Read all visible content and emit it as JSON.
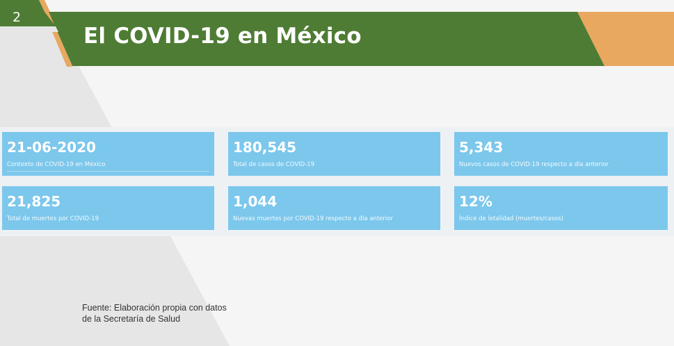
{
  "slide": {
    "number": "2",
    "title": "El COVID-19 en México"
  },
  "colors": {
    "green": "#4e7c34",
    "orange": "#e8a860",
    "card": "#7cc7ec"
  },
  "stats": [
    {
      "value": "21-06-2020",
      "label": "Contexto de COVID-19 en México"
    },
    {
      "value": "180,545",
      "label": "Total de casos de COVID-19"
    },
    {
      "value": "5,343",
      "label": "Nuevos casos de COVID-19 respecto a día anterior"
    },
    {
      "value": "21,825",
      "label": "Total de muertes por COVID-19"
    },
    {
      "value": "1,044",
      "label": "Nuevas muertes por COVID-19 respecto a día anterior"
    },
    {
      "value": "12%",
      "label": "Índice de letalidad (muertes/casos)"
    }
  ],
  "source": {
    "line1": "Fuente: Elaboración propia con datos",
    "line2": "de la Secretaría de Salud"
  }
}
